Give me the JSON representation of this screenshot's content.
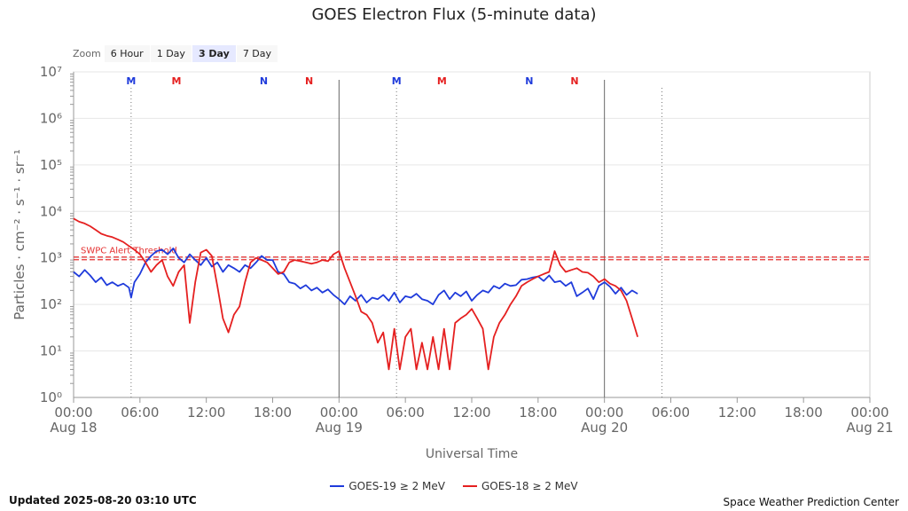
{
  "chart_data": {
    "type": "line",
    "title": "GOES Electron Flux (5-minute data)",
    "xlabel": "Universal Time",
    "ylabel": "Particles · cm⁻² · s⁻¹ · sr⁻¹",
    "yscale": "log",
    "ylim": [
      1,
      10000000
    ],
    "xlim_hours": [
      0,
      72
    ],
    "y_ticks": [
      {
        "value": 1,
        "label": "10⁰"
      },
      {
        "value": 10,
        "label": "10¹"
      },
      {
        "value": 100,
        "label": "10²"
      },
      {
        "value": 1000,
        "label": "10³"
      },
      {
        "value": 10000,
        "label": "10⁴"
      },
      {
        "value": 100000,
        "label": "10⁵"
      },
      {
        "value": 1000000,
        "label": "10⁶"
      },
      {
        "value": 10000000,
        "label": "10⁷"
      }
    ],
    "x_ticks": [
      {
        "hour": 0,
        "time": "00:00",
        "date": "Aug 18"
      },
      {
        "hour": 6,
        "time": "06:00",
        "date": ""
      },
      {
        "hour": 12,
        "time": "12:00",
        "date": ""
      },
      {
        "hour": 18,
        "time": "18:00",
        "date": ""
      },
      {
        "hour": 24,
        "time": "00:00",
        "date": "Aug 19"
      },
      {
        "hour": 30,
        "time": "06:00",
        "date": ""
      },
      {
        "hour": 36,
        "time": "12:00",
        "date": ""
      },
      {
        "hour": 42,
        "time": "18:00",
        "date": ""
      },
      {
        "hour": 48,
        "time": "00:00",
        "date": "Aug 20"
      },
      {
        "hour": 54,
        "time": "06:00",
        "date": ""
      },
      {
        "hour": 60,
        "time": "12:00",
        "date": ""
      },
      {
        "hour": 66,
        "time": "18:00",
        "date": ""
      },
      {
        "hour": 72,
        "time": "00:00",
        "date": "Aug 21"
      }
    ],
    "threshold": {
      "label": "SWPC Alert Threshold",
      "value": 1000,
      "color": "#e53030"
    },
    "day_lines_hours": [
      24,
      48
    ],
    "noon_lines_hours": [
      5.2,
      29.2,
      53.2
    ],
    "markers": [
      {
        "hour": 5.2,
        "label": "M",
        "color": "#1f3bdb"
      },
      {
        "hour": 9.3,
        "label": "M",
        "color": "#e52020"
      },
      {
        "hour": 17.2,
        "label": "N",
        "color": "#1f3bdb"
      },
      {
        "hour": 21.3,
        "label": "N",
        "color": "#e52020"
      },
      {
        "hour": 29.2,
        "label": "M",
        "color": "#1f3bdb"
      },
      {
        "hour": 33.3,
        "label": "M",
        "color": "#e52020"
      },
      {
        "hour": 41.2,
        "label": "N",
        "color": "#1f3bdb"
      },
      {
        "hour": 45.3,
        "label": "N",
        "color": "#e52020"
      }
    ],
    "series": [
      {
        "name": "GOES-19 ≥ 2 MeV",
        "color": "#1f3bdb",
        "points": [
          [
            0,
            500
          ],
          [
            0.5,
            400
          ],
          [
            1,
            550
          ],
          [
            1.5,
            420
          ],
          [
            2,
            300
          ],
          [
            2.5,
            380
          ],
          [
            3,
            260
          ],
          [
            3.5,
            300
          ],
          [
            4,
            250
          ],
          [
            4.5,
            280
          ],
          [
            5,
            230
          ],
          [
            5.2,
            140
          ],
          [
            5.5,
            300
          ],
          [
            6,
            450
          ],
          [
            6.5,
            800
          ],
          [
            7,
            1100
          ],
          [
            7.5,
            1400
          ],
          [
            8,
            1500
          ],
          [
            8.5,
            1200
          ],
          [
            9,
            1600
          ],
          [
            9.5,
            1000
          ],
          [
            10,
            800
          ],
          [
            10.5,
            1200
          ],
          [
            11,
            900
          ],
          [
            11.5,
            700
          ],
          [
            12,
            1000
          ],
          [
            12.5,
            650
          ],
          [
            13,
            800
          ],
          [
            13.5,
            500
          ],
          [
            14,
            700
          ],
          [
            14.5,
            600
          ],
          [
            15,
            500
          ],
          [
            15.5,
            700
          ],
          [
            16,
            600
          ],
          [
            16.5,
            800
          ],
          [
            17,
            1100
          ],
          [
            17.5,
            900
          ],
          [
            18,
            900
          ],
          [
            18.5,
            500
          ],
          [
            19,
            450
          ],
          [
            19.5,
            300
          ],
          [
            20,
            280
          ],
          [
            20.5,
            220
          ],
          [
            21,
            260
          ],
          [
            21.5,
            200
          ],
          [
            22,
            230
          ],
          [
            22.5,
            180
          ],
          [
            23,
            210
          ],
          [
            23.5,
            160
          ],
          [
            24,
            130
          ],
          [
            24.5,
            100
          ],
          [
            25,
            150
          ],
          [
            25.5,
            120
          ],
          [
            26,
            160
          ],
          [
            26.5,
            110
          ],
          [
            27,
            140
          ],
          [
            27.5,
            130
          ],
          [
            28,
            160
          ],
          [
            28.5,
            120
          ],
          [
            29,
            180
          ],
          [
            29.5,
            110
          ],
          [
            30,
            150
          ],
          [
            30.5,
            140
          ],
          [
            31,
            170
          ],
          [
            31.5,
            130
          ],
          [
            32,
            120
          ],
          [
            32.5,
            100
          ],
          [
            33,
            160
          ],
          [
            33.5,
            200
          ],
          [
            34,
            130
          ],
          [
            34.5,
            180
          ],
          [
            35,
            150
          ],
          [
            35.5,
            190
          ],
          [
            36,
            120
          ],
          [
            36.5,
            160
          ],
          [
            37,
            200
          ],
          [
            37.5,
            180
          ],
          [
            38,
            250
          ],
          [
            38.5,
            220
          ],
          [
            39,
            280
          ],
          [
            39.5,
            250
          ],
          [
            40,
            260
          ],
          [
            40.5,
            340
          ],
          [
            41,
            350
          ],
          [
            41.5,
            380
          ],
          [
            42,
            400
          ],
          [
            42.5,
            320
          ],
          [
            43,
            420
          ],
          [
            43.5,
            300
          ],
          [
            44,
            320
          ],
          [
            44.5,
            250
          ],
          [
            45,
            300
          ],
          [
            45.5,
            150
          ],
          [
            46,
            180
          ],
          [
            46.5,
            220
          ],
          [
            47,
            130
          ],
          [
            47.5,
            250
          ],
          [
            48,
            300
          ],
          [
            48.5,
            240
          ],
          [
            49,
            170
          ],
          [
            49.5,
            230
          ],
          [
            50,
            160
          ],
          [
            50.5,
            200
          ],
          [
            51,
            170
          ]
        ]
      },
      {
        "name": "GOES-18 ≥ 2 MeV",
        "color": "#e52020",
        "points": [
          [
            0,
            7000
          ],
          [
            0.5,
            6000
          ],
          [
            1,
            5500
          ],
          [
            1.5,
            4800
          ],
          [
            2,
            4000
          ],
          [
            2.5,
            3300
          ],
          [
            3,
            3000
          ],
          [
            3.5,
            2800
          ],
          [
            4,
            2500
          ],
          [
            4.5,
            2200
          ],
          [
            5,
            1800
          ],
          [
            5.5,
            1500
          ],
          [
            6,
            1200
          ],
          [
            6.5,
            800
          ],
          [
            7,
            500
          ],
          [
            7.5,
            700
          ],
          [
            8,
            900
          ],
          [
            8.5,
            400
          ],
          [
            9,
            250
          ],
          [
            9.5,
            500
          ],
          [
            10,
            700
          ],
          [
            10.5,
            40
          ],
          [
            11,
            300
          ],
          [
            11.5,
            1300
          ],
          [
            12,
            1500
          ],
          [
            12.5,
            1100
          ],
          [
            13,
            250
          ],
          [
            13.5,
            50
          ],
          [
            14,
            25
          ],
          [
            14.5,
            60
          ],
          [
            15,
            90
          ],
          [
            15.5,
            300
          ],
          [
            16,
            800
          ],
          [
            16.5,
            1000
          ],
          [
            17,
            900
          ],
          [
            17.5,
            800
          ],
          [
            18,
            600
          ],
          [
            18.5,
            450
          ],
          [
            19,
            500
          ],
          [
            19.5,
            800
          ],
          [
            20,
            900
          ],
          [
            20.5,
            850
          ],
          [
            21,
            800
          ],
          [
            21.5,
            750
          ],
          [
            22,
            800
          ],
          [
            22.5,
            900
          ],
          [
            23,
            850
          ],
          [
            23.5,
            1200
          ],
          [
            24,
            1400
          ],
          [
            24.5,
            600
          ],
          [
            25,
            300
          ],
          [
            25.5,
            150
          ],
          [
            26,
            70
          ],
          [
            26.5,
            60
          ],
          [
            27,
            40
          ],
          [
            27.5,
            15
          ],
          [
            28,
            25
          ],
          [
            28.5,
            4
          ],
          [
            29,
            30
          ],
          [
            29.5,
            4
          ],
          [
            30,
            20
          ],
          [
            30.5,
            30
          ],
          [
            31,
            4
          ],
          [
            31.5,
            15
          ],
          [
            32,
            4
          ],
          [
            32.5,
            20
          ],
          [
            33,
            4
          ],
          [
            33.5,
            30
          ],
          [
            34,
            4
          ],
          [
            34.5,
            40
          ],
          [
            35,
            50
          ],
          [
            35.5,
            60
          ],
          [
            36,
            80
          ],
          [
            36.5,
            50
          ],
          [
            37,
            30
          ],
          [
            37.5,
            4
          ],
          [
            38,
            20
          ],
          [
            38.5,
            40
          ],
          [
            39,
            60
          ],
          [
            39.5,
            100
          ],
          [
            40,
            150
          ],
          [
            40.5,
            250
          ],
          [
            41,
            300
          ],
          [
            41.5,
            350
          ],
          [
            42,
            400
          ],
          [
            42.5,
            450
          ],
          [
            43,
            500
          ],
          [
            43.5,
            1400
          ],
          [
            44,
            700
          ],
          [
            44.5,
            500
          ],
          [
            45,
            550
          ],
          [
            45.5,
            600
          ],
          [
            46,
            500
          ],
          [
            46.5,
            480
          ],
          [
            47,
            400
          ],
          [
            47.5,
            300
          ],
          [
            48,
            350
          ],
          [
            48.5,
            280
          ],
          [
            49,
            250
          ],
          [
            49.5,
            200
          ],
          [
            50,
            120
          ],
          [
            50.5,
            50
          ],
          [
            51,
            20
          ]
        ]
      }
    ],
    "legend_position": "bottom"
  },
  "ui": {
    "zoom_label": "Zoom",
    "zoom_options": [
      "6 Hour",
      "1 Day",
      "3 Day",
      "7 Day"
    ],
    "zoom_active": "3 Day",
    "updated": "Updated 2025-08-20 03:10 UTC",
    "credit": "Space Weather Prediction Center"
  }
}
